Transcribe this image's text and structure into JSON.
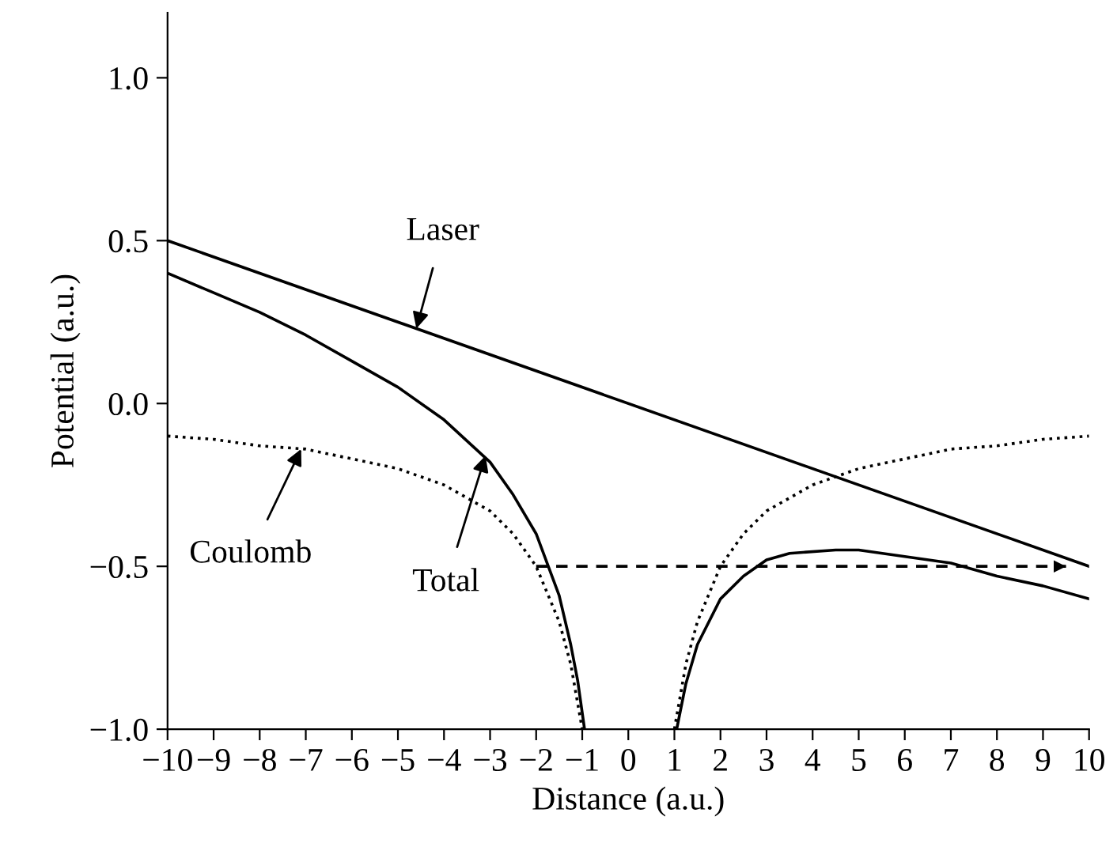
{
  "chart_data": {
    "type": "line",
    "xlabel": "Distance (a.u.)",
    "ylabel": "Potential (a.u.)",
    "xlim": [
      -10,
      10
    ],
    "ylim": [
      -1.0,
      1.2
    ],
    "xticks": [
      {
        "value": -10,
        "label": "−10"
      },
      {
        "value": -9,
        "label": "−9"
      },
      {
        "value": -8,
        "label": "−8"
      },
      {
        "value": -7,
        "label": "−7"
      },
      {
        "value": -6,
        "label": "−6"
      },
      {
        "value": -5,
        "label": "−5"
      },
      {
        "value": -4,
        "label": "−4"
      },
      {
        "value": -3,
        "label": "−3"
      },
      {
        "value": -2,
        "label": "−2"
      },
      {
        "value": -1,
        "label": "−1"
      },
      0,
      1,
      2,
      3,
      4,
      5,
      6,
      7,
      8,
      9,
      10
    ],
    "yticks": [
      {
        "value": -1.0,
        "label": "−1.0"
      },
      {
        "value": -0.5,
        "label": "−0.5"
      },
      {
        "value": 0.0,
        "label": "0.0"
      },
      {
        "value": 0.5,
        "label": "0.5"
      },
      {
        "value": 1.0,
        "label": "1.0"
      }
    ],
    "grid": false,
    "legend": false,
    "marker": "none",
    "series": [
      {
        "color": "#000000",
        "line_style": "solid",
        "x": [
          -10,
          10
        ],
        "values": [
          0.5,
          -0.5
        ]
      },
      {
        "color": "#000000",
        "line_style": "dotted",
        "x": [
          -10,
          -9,
          -8,
          -7,
          -6,
          -5,
          -4,
          -3,
          -2.5,
          -2,
          -1.5,
          -1.25,
          -1,
          0,
          1,
          1.25,
          1.5,
          2,
          2.5,
          3,
          4,
          5,
          6,
          7,
          8,
          9,
          10
        ],
        "values": [
          -0.1,
          -0.11,
          -0.13,
          -0.14,
          -0.17,
          -0.2,
          -0.25,
          -0.33,
          -0.4,
          -0.5,
          -0.67,
          -0.8,
          -1.0,
          null,
          -1.0,
          -0.8,
          -0.67,
          -0.5,
          -0.4,
          -0.33,
          -0.25,
          -0.2,
          -0.17,
          -0.14,
          -0.13,
          -0.11,
          -0.1
        ]
      },
      {
        "color": "#000000",
        "line_style": "solid",
        "x": [
          -10,
          -9,
          -8,
          -7,
          -6,
          -5,
          -4,
          -3,
          -2.5,
          -2,
          -1.5,
          -1.25,
          -1.1,
          -0.95,
          0,
          1.05,
          1.25,
          1.5,
          2,
          2.5,
          3,
          3.5,
          4.5,
          5,
          6,
          7,
          8,
          9,
          10
        ],
        "values": [
          0.4,
          0.34,
          0.28,
          0.21,
          0.13,
          0.05,
          -0.05,
          -0.18,
          -0.28,
          -0.4,
          -0.59,
          -0.74,
          -0.85,
          -1.0,
          null,
          -1.0,
          -0.86,
          -0.74,
          -0.6,
          -0.53,
          -0.48,
          -0.46,
          -0.45,
          -0.45,
          -0.47,
          -0.49,
          -0.53,
          -0.56,
          -0.6
        ]
      },
      {
        "color": "#000000",
        "line_style": "dashed",
        "x": [
          -2,
          9.5
        ],
        "values": [
          -0.5,
          -0.5
        ]
      }
    ],
    "annotations": [
      {
        "text": "Laser",
        "x": -4.6,
        "y": 0.23
      },
      {
        "text": "Coulomb",
        "x": -7.1,
        "y": -0.14
      },
      {
        "text": "Total",
        "x": -3.1,
        "y": -0.16
      }
    ]
  }
}
